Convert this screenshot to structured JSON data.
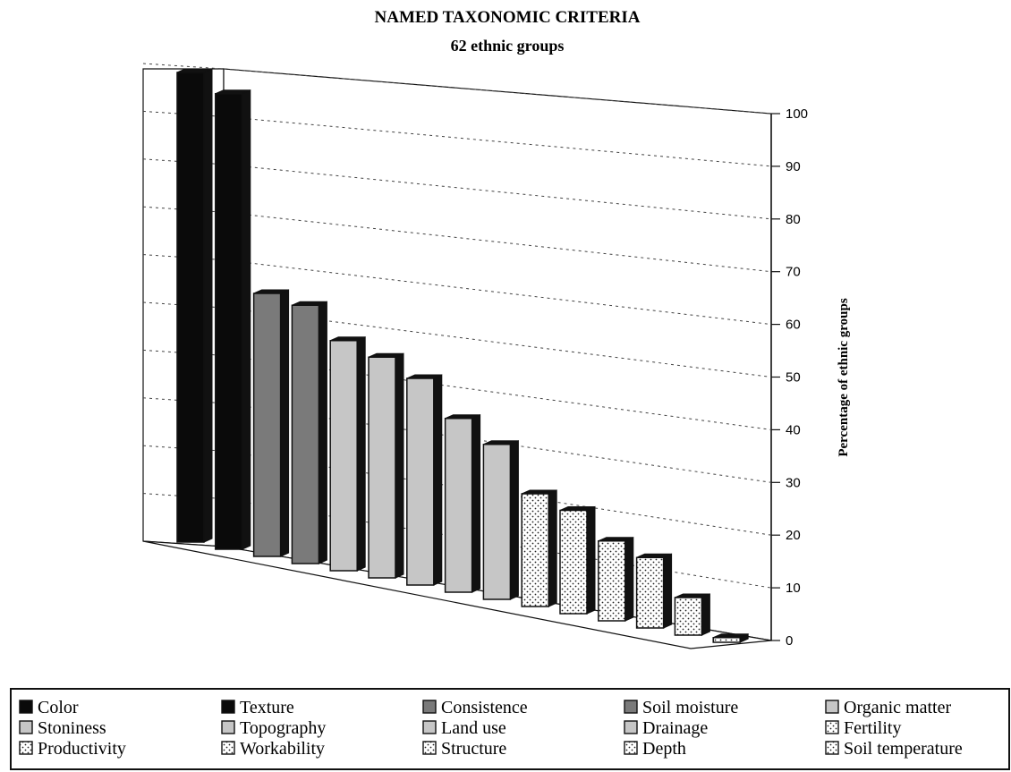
{
  "chart_data": {
    "type": "bar",
    "title": "NAMED TAXONOMIC CRITERIA",
    "subtitle": "62 ethnic groups",
    "ylabel": "Percentage of ethnic groups",
    "ylim": [
      0,
      100
    ],
    "yticks": [
      "0",
      "10",
      "20",
      "30",
      "40",
      "50",
      "60",
      "70",
      "80",
      "90",
      "100"
    ],
    "grid": true,
    "legend_position": "bottom",
    "categories": [
      "Color",
      "Texture",
      "Consistence",
      "Soil moisture",
      "Organic matter",
      "Stoniness",
      "Topography",
      "Land use",
      "Drainage",
      "Fertility",
      "Productivity",
      "Workability",
      "Structure",
      "Depth",
      "Soil temperature"
    ],
    "values": [
      100,
      97,
      56,
      55,
      49,
      47,
      44,
      37,
      33,
      24,
      22,
      17,
      15,
      8,
      1
    ],
    "fills": [
      "black",
      "black",
      "dark",
      "dark",
      "light",
      "light",
      "light",
      "light",
      "light",
      "dotted",
      "dotted",
      "dotted",
      "dotted",
      "dotted",
      "dotted"
    ],
    "colors": {
      "black": "#0a0a0a",
      "dark": "#7a7a7a",
      "light": "#c6c6c6",
      "dotted": "#ffffff"
    }
  }
}
